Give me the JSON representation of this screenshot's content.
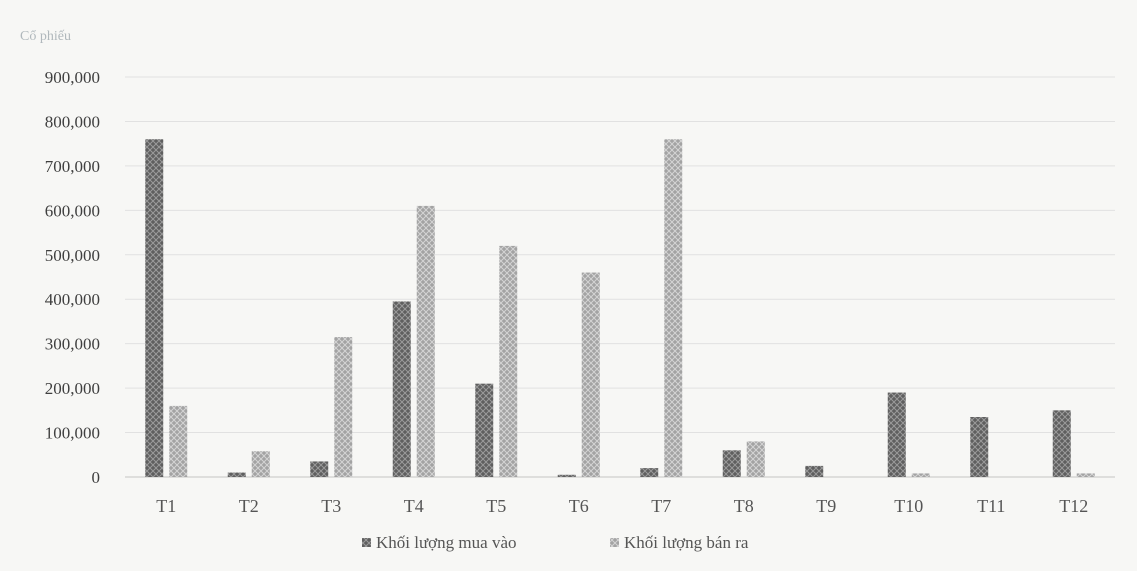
{
  "chart_data": {
    "type": "bar",
    "ylabel": "Cổ phiếu",
    "categories": [
      "T1",
      "T2",
      "T3",
      "T4",
      "T5",
      "T6",
      "T7",
      "T8",
      "T9",
      "T10",
      "T11",
      "T12"
    ],
    "series": [
      {
        "name": "Khối lượng mua vào",
        "color": "#6e6e6e",
        "values": [
          760000,
          10000,
          35000,
          395000,
          210000,
          5000,
          20000,
          60000,
          25000,
          190000,
          135000,
          150000
        ]
      },
      {
        "name": "Khối lượng bán ra",
        "color": "#a6a6a6",
        "values": [
          160000,
          58000,
          315000,
          610000,
          520000,
          460000,
          760000,
          80000,
          0,
          8000,
          0,
          8000
        ]
      }
    ],
    "ylim": [
      0,
      900000
    ],
    "yticks": [
      "0",
      "100,000",
      "200,000",
      "300,000",
      "400,000",
      "500,000",
      "600,000",
      "700,000",
      "800,000",
      "900,000"
    ],
    "grid": true,
    "legend_position": "bottom"
  }
}
